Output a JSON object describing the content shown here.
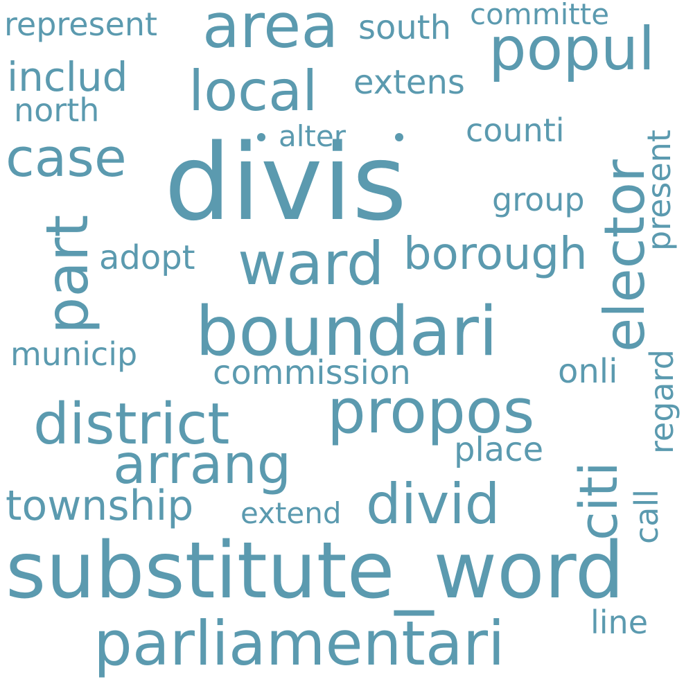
{
  "cloud": {
    "color": "#5b9aaf",
    "background": "#ffffff",
    "words": {
      "divis": "divis",
      "substitute_word": "substitute_word",
      "boundari": "boundari",
      "parliamentari": "parliamentari",
      "propos": "propos",
      "district": "district",
      "area": "area",
      "popul": "popul",
      "ward": "ward",
      "elector": "elector",
      "local": "local",
      "case": "case",
      "part": "part",
      "arrang": "arrang",
      "divid": "divid",
      "citi": "citi",
      "borough": "borough",
      "township": "township",
      "includ": "includ",
      "represent": "represent",
      "south": "south",
      "committe": "committe",
      "extens": "extens",
      "north": "north",
      "alter": "alter",
      "counti": "counti",
      "present": "present",
      "group": "group",
      "adopt": "adopt",
      "municip": "municip",
      "commission": "commission",
      "onli": "onli",
      "regard": "regard",
      "place": "place",
      "extend": "extend",
      "call": "call",
      "line": "line"
    }
  }
}
